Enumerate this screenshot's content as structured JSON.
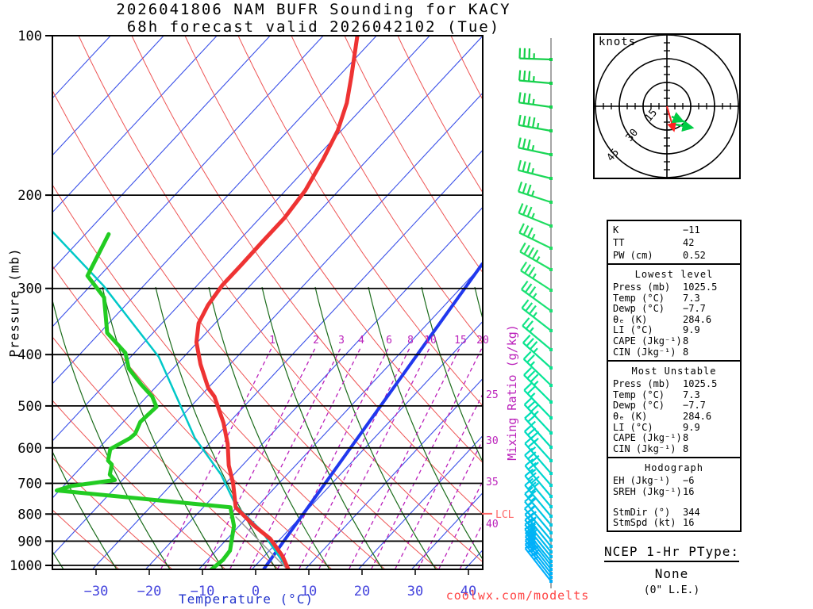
{
  "title": {
    "line1": "2026041806 NAM BUFR Sounding for KACY",
    "line2": "68h forecast valid 2026042102 (Tue)"
  },
  "watermark": "coolwx.com/modelts",
  "axes": {
    "x_label": "Temperature (°C)",
    "y_label": "Pressure (mb)",
    "x_ticks": [
      "−30",
      "−20",
      "−10",
      "0",
      "10",
      "20",
      "30",
      "40"
    ],
    "y_ticks": [
      "100",
      "200",
      "300",
      "400",
      "500",
      "600",
      "700",
      "800",
      "900",
      "1000"
    ]
  },
  "mixing_ratio": {
    "label": "Mixing Ratio (g/kg)",
    "top_labels": [
      "1",
      "2",
      "3",
      "4",
      "6",
      "8",
      "10",
      "15",
      "20"
    ],
    "right_labels": [
      "25",
      "30",
      "35",
      "40"
    ],
    "color": "#bb22bb"
  },
  "lcl_label": "LCL",
  "hodograph": {
    "unit": "knots",
    "rings": [
      "15",
      "30",
      "45"
    ],
    "storm_dir_deg": 344,
    "storm_spd_kt": 16,
    "trace_kt": [
      [
        3,
        -6.5
      ],
      [
        10,
        -9.5
      ],
      [
        5.5,
        -11.5
      ],
      [
        16,
        -13.5
      ]
    ]
  },
  "stats": {
    "summary": [
      [
        "K",
        "−11"
      ],
      [
        "TT",
        "42"
      ],
      [
        "PW (cm)",
        "0.52"
      ]
    ],
    "sections": [
      {
        "header": "Lowest level",
        "rows": [
          [
            "Press (mb)",
            "1025.5"
          ],
          [
            "Temp (°C)",
            "7.3"
          ],
          [
            "Dewp (°C)",
            "−7.7"
          ],
          [
            "θₑ (K)",
            "284.6"
          ],
          [
            "LI (°C)",
            "9.9"
          ],
          [
            "CAPE (Jkg⁻¹)",
            "8"
          ],
          [
            "CIN (Jkg⁻¹)",
            "8"
          ]
        ]
      },
      {
        "header": "Most Unstable",
        "rows": [
          [
            "Press (mb)",
            "1025.5"
          ],
          [
            "Temp (°C)",
            "7.3"
          ],
          [
            "Dewp (°C)",
            "−7.7"
          ],
          [
            "θₑ (K)",
            "284.6"
          ],
          [
            "LI (°C)",
            "9.9"
          ],
          [
            "CAPE (Jkg⁻¹)",
            "8"
          ],
          [
            "CIN (Jkg⁻¹)",
            "8"
          ]
        ]
      },
      {
        "header": "Hodograph",
        "rows": [
          [
            "EH (Jkg⁻¹)",
            "−6"
          ],
          [
            "SREH (Jkg⁻¹)",
            "16"
          ],
          [
            "StmDir (°)",
            "344"
          ],
          [
            "StmSpd (kt)",
            "16"
          ]
        ],
        "gap_before_row": 2
      }
    ]
  },
  "ptype": {
    "title": "NCEP 1-Hr PType:",
    "value": "None",
    "note": "(0\" L.E.)"
  },
  "chart_data": {
    "type": "line",
    "title": "Skew-T log-P sounding",
    "x_axis": {
      "label": "Temperature (°C)",
      "range": [
        -40,
        45
      ],
      "skew": true
    },
    "y_axis": {
      "label": "Pressure (mb)",
      "range": [
        1050,
        100
      ],
      "scale": "log"
    },
    "series": [
      {
        "name": "temperature",
        "color": "#ee3333",
        "width": 5,
        "points_p_T": [
          [
            100,
            -73.6
          ],
          [
            119,
            -67.7
          ],
          [
            134,
            -63.8
          ],
          [
            151,
            -60.7
          ],
          [
            171,
            -58.4
          ],
          [
            196,
            -56.3
          ],
          [
            221,
            -55.4
          ],
          [
            245,
            -55.4
          ],
          [
            272,
            -55.3
          ],
          [
            296,
            -55.3
          ],
          [
            323,
            -54.5
          ],
          [
            349,
            -53.1
          ],
          [
            379,
            -50.2
          ],
          [
            417,
            -45.6
          ],
          [
            463,
            -39.9
          ],
          [
            480,
            -37.3
          ],
          [
            538,
            -31.0
          ],
          [
            590,
            -26.5
          ],
          [
            647,
            -22.6
          ],
          [
            700,
            -18.6
          ],
          [
            777,
            -13.9
          ],
          [
            842,
            -7.2
          ],
          [
            891,
            -1.9
          ],
          [
            960,
            3.4
          ],
          [
            1025.5,
            7.3
          ]
        ]
      },
      {
        "name": "dewpoint",
        "color": "#22cc22",
        "width": 5,
        "points_p_T": [
          [
            237,
            -85.6
          ],
          [
            284,
            -82.3
          ],
          [
            312,
            -75.4
          ],
          [
            364,
            -68.6
          ],
          [
            397,
            -61.7
          ],
          [
            425,
            -58.3
          ],
          [
            456,
            -53.1
          ],
          [
            480,
            -49.0
          ],
          [
            502,
            -46.4
          ],
          [
            536,
            -46.8
          ],
          [
            564,
            -45.7
          ],
          [
            575,
            -45.9
          ],
          [
            603,
            -47.7
          ],
          [
            634,
            -46.1
          ],
          [
            645,
            -44.7
          ],
          [
            674,
            -43.3
          ],
          [
            690,
            -41.4
          ],
          [
            708,
            -48.5
          ],
          [
            722,
            -50.5
          ],
          [
            777,
            -14.9
          ],
          [
            842,
            -11.0
          ],
          [
            938,
            -7.4
          ],
          [
            977,
            -7.1
          ],
          [
            1025.5,
            -7.7
          ]
        ]
      },
      {
        "name": "wet_bulb",
        "color": "#00c8c8",
        "width": 2.5,
        "points_p_T": [
          [
            231,
            -97.8
          ],
          [
            296,
            -77.7
          ],
          [
            404,
            -54.7
          ],
          [
            575,
            -33.7
          ],
          [
            674,
            -22.4
          ],
          [
            772,
            -14.1
          ],
          [
            862,
            -4.8
          ],
          [
            1025.5,
            7.3
          ]
        ]
      },
      {
        "name": "parcel",
        "color": "#999999",
        "width": 1.5,
        "points_p_T": [
          [
            810,
            -12.2
          ],
          [
            1025.5,
            7.3
          ]
        ]
      }
    ],
    "lcl_pressure_mb": 810,
    "wind_barbs": {
      "color_stops": [
        [
          45,
          "#11cc44"
        ],
        [
          350,
          "#22e066"
        ],
        [
          520,
          "#00e6a0"
        ],
        [
          620,
          "#00d4d4"
        ],
        [
          745,
          "#00aaff"
        ]
      ],
      "levels": [
        [
          75,
          2,
          3
        ],
        [
          105,
          5,
          3
        ],
        [
          135,
          8,
          3
        ],
        [
          165,
          10,
          4
        ],
        [
          195,
          12,
          3
        ],
        [
          225,
          14,
          3
        ],
        [
          255,
          18,
          3
        ],
        [
          285,
          22,
          3
        ],
        [
          313,
          26,
          3
        ],
        [
          340,
          30,
          4
        ],
        [
          366,
          33,
          3
        ],
        [
          392,
          36,
          3
        ],
        [
          417,
          38,
          3
        ],
        [
          441,
          40,
          2
        ],
        [
          464,
          42,
          3
        ],
        [
          486,
          44,
          2
        ],
        [
          507,
          45,
          3
        ],
        [
          527,
          46,
          2
        ],
        [
          546,
          47,
          3
        ],
        [
          564,
          48,
          2
        ],
        [
          581,
          48,
          3
        ],
        [
          597,
          49,
          2
        ],
        [
          612,
          49,
          3
        ],
        [
          626,
          50,
          2
        ],
        [
          639,
          50,
          3
        ],
        [
          651,
          50,
          2
        ],
        [
          662,
          50,
          2
        ],
        [
          672,
          50,
          2
        ],
        [
          681,
          50,
          2
        ],
        [
          689,
          51,
          2
        ],
        [
          696,
          51,
          2
        ],
        [
          702,
          51,
          2
        ],
        [
          708,
          51,
          2
        ],
        [
          713,
          52,
          2
        ],
        [
          718,
          52,
          2
        ],
        [
          723,
          52,
          2
        ],
        [
          728,
          52,
          3
        ],
        [
          733,
          52,
          3
        ]
      ]
    }
  }
}
